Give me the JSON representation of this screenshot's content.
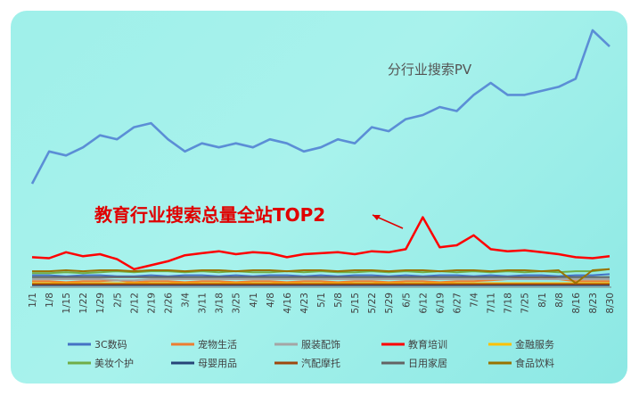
{
  "chart_data": {
    "type": "line",
    "title": "分行业搜索PV",
    "annotation": "教育行业搜索总量全站TOP2",
    "x_tick_labels": [
      "1/1",
      "1/8",
      "1/15",
      "1/22",
      "1/29",
      "2/5",
      "2/12",
      "2/19",
      "2/26",
      "3/4",
      "3/11",
      "3/18",
      "3/25",
      "4/1",
      "4/8",
      "4/16",
      "4/23",
      "5/1",
      "5/8",
      "5/15",
      "5/22",
      "5/29",
      "6/5",
      "6/12",
      "6/19",
      "6/27",
      "7/4",
      "7/11",
      "7/18",
      "7/25",
      "8/1",
      "8/8",
      "8/16",
      "8/23",
      "8/30"
    ],
    "grid": false,
    "legend_position": "bottom",
    "series": [
      {
        "name": "3C数码",
        "color": "#4472c4",
        "level": "low",
        "values": [
          12,
          12,
          11,
          12,
          12,
          11,
          11,
          12,
          11,
          12,
          12,
          11,
          12,
          11,
          12,
          12,
          11,
          12,
          11,
          12,
          12,
          11,
          12,
          11,
          12,
          12,
          11,
          12,
          11,
          12,
          12,
          11,
          12,
          12,
          13
        ]
      },
      {
        "name": "宠物生活",
        "color": "#ed7d31",
        "level": "low",
        "values": [
          6,
          6,
          5,
          6,
          6,
          7,
          5,
          6,
          6,
          5,
          6,
          6,
          5,
          6,
          6,
          5,
          6,
          6,
          5,
          6,
          6,
          5,
          6,
          6,
          5,
          6,
          6,
          7,
          8,
          9,
          10,
          8,
          6,
          6,
          6
        ]
      },
      {
        "name": "服装配饰",
        "color": "#a5a5a5",
        "level": "low",
        "values": [
          8,
          8,
          8,
          8,
          8,
          7,
          7,
          8,
          8,
          8,
          8,
          8,
          8,
          8,
          8,
          8,
          8,
          8,
          8,
          8,
          8,
          8,
          8,
          8,
          8,
          8,
          8,
          8,
          8,
          8,
          8,
          8,
          8,
          8,
          8
        ]
      },
      {
        "name": "教育培训",
        "color": "#ff0000",
        "level": "high",
        "values": [
          30,
          29,
          35,
          31,
          33,
          28,
          18,
          22,
          26,
          32,
          34,
          36,
          33,
          35,
          34,
          30,
          33,
          34,
          35,
          33,
          36,
          35,
          38,
          70,
          40,
          42,
          52,
          38,
          36,
          37,
          35,
          33,
          30,
          29,
          31
        ]
      },
      {
        "name": "金融服务",
        "color": "#ffc000",
        "level": "low",
        "values": [
          4,
          4,
          4,
          4,
          4,
          4,
          4,
          4,
          4,
          4,
          4,
          4,
          4,
          4,
          4,
          4,
          4,
          4,
          4,
          4,
          4,
          4,
          4,
          4,
          4,
          4,
          4,
          4,
          4,
          4,
          4,
          4,
          4,
          4,
          4
        ]
      },
      {
        "name": "美妆个护",
        "color": "#70ad47",
        "level": "low",
        "values": [
          14,
          14,
          15,
          14,
          15,
          16,
          15,
          16,
          16,
          15,
          16,
          15,
          16,
          15,
          15,
          16,
          15,
          16,
          15,
          15,
          16,
          15,
          16,
          15,
          16,
          15,
          16,
          15,
          16,
          15,
          16,
          15,
          16,
          16,
          18
        ]
      },
      {
        "name": "母婴用品",
        "color": "#264478",
        "level": "low",
        "values": [
          2,
          2,
          2,
          2,
          2,
          2,
          2,
          2,
          2,
          2,
          2,
          2,
          2,
          2,
          2,
          2,
          2,
          2,
          2,
          2,
          2,
          2,
          2,
          2,
          2,
          2,
          2,
          2,
          2,
          2,
          2,
          2,
          2,
          2,
          2
        ]
      },
      {
        "name": "汽配摩托",
        "color": "#9e480e",
        "level": "low",
        "values": [
          3,
          3,
          3,
          3,
          3,
          3,
          3,
          3,
          3,
          3,
          3,
          3,
          3,
          3,
          3,
          3,
          3,
          3,
          3,
          3,
          3,
          3,
          3,
          3,
          3,
          3,
          3,
          3,
          3,
          3,
          3,
          3,
          3,
          3,
          3
        ]
      },
      {
        "name": "日用家居",
        "color": "#636363",
        "level": "low",
        "values": [
          10,
          10,
          10,
          10,
          10,
          10,
          10,
          10,
          10,
          10,
          10,
          10,
          10,
          10,
          10,
          10,
          10,
          10,
          10,
          10,
          10,
          10,
          10,
          10,
          10,
          10,
          10,
          10,
          10,
          10,
          10,
          10,
          10,
          10,
          10
        ]
      },
      {
        "name": "食品饮料",
        "color": "#997300",
        "level": "low",
        "values": [
          16,
          16,
          17,
          16,
          17,
          17,
          16,
          17,
          17,
          16,
          17,
          17,
          16,
          17,
          17,
          16,
          17,
          17,
          16,
          17,
          17,
          16,
          17,
          17,
          16,
          17,
          17,
          16,
          17,
          17,
          16,
          17,
          4,
          17,
          18
        ]
      }
    ],
    "total_pv": {
      "name": "分行业搜索PV",
      "color": "#5b8ed6",
      "values": [
        130,
        170,
        165,
        175,
        190,
        185,
        200,
        205,
        185,
        170,
        180,
        175,
        180,
        175,
        185,
        180,
        170,
        175,
        185,
        180,
        200,
        195,
        210,
        215,
        225,
        220,
        240,
        255,
        240,
        240,
        245,
        250,
        260,
        320,
        300
      ]
    }
  },
  "colors": {
    "card_bg": "#a0f0ea",
    "annotation": "#e00000",
    "title": "#555555",
    "axis": "#7f7f7f"
  }
}
